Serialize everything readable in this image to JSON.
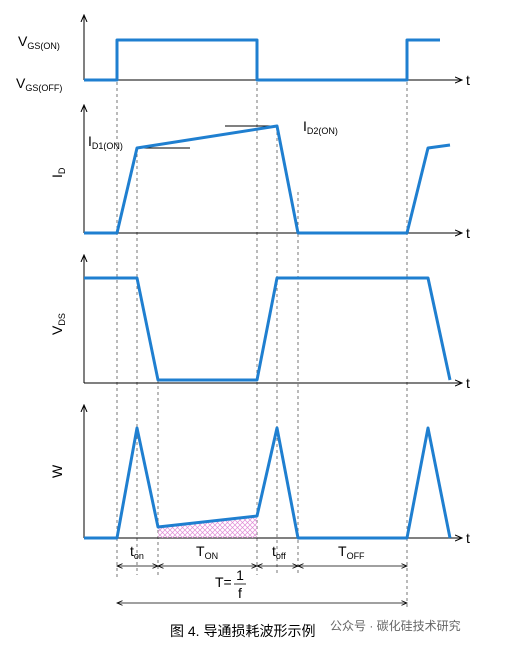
{
  "diagram": {
    "vgs_on": {
      "main": "V",
      "sub": "GS(ON)"
    },
    "vgs_off": {
      "main": "V",
      "sub": "GS(OFF)"
    },
    "id": {
      "main": "I",
      "sub": "D"
    },
    "id1": {
      "main": "I",
      "sub": "D1(ON)"
    },
    "id2": {
      "main": "I",
      "sub": "D2(ON)"
    },
    "vds": {
      "main": "V",
      "sub": "DS"
    },
    "w": "W",
    "axis_t": [
      "t",
      "t",
      "t",
      "t"
    ],
    "t_on": {
      "main": "t",
      "sub": "on"
    },
    "T_on": {
      "main": "T",
      "sub": "ON"
    },
    "t_off": {
      "main": "t",
      "sub": "off"
    },
    "T_off": {
      "main": "T",
      "sub": "OFF"
    },
    "period": {
      "lhs": "T=",
      "num": "1",
      "den": "f"
    },
    "caption": "图 4. 导通损耗波形示例",
    "watermark": "公众号 · 碳化硅技术研究"
  }
}
